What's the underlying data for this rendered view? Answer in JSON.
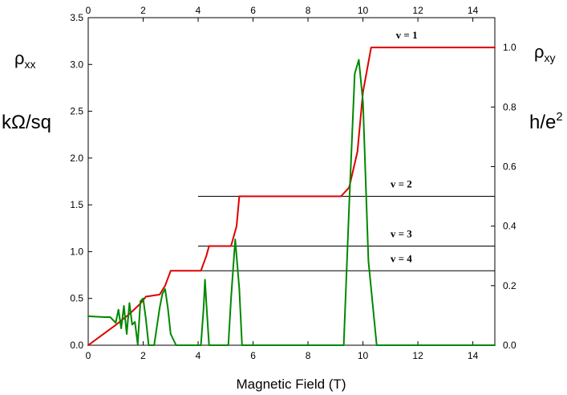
{
  "chart_data": {
    "type": "line",
    "title": "",
    "xlabel": "Magnetic Field  (T)",
    "xlim": [
      0,
      14.8
    ],
    "x_ticks": [
      "0",
      "2",
      "4",
      "6",
      "8",
      "10",
      "12",
      "14"
    ],
    "ylim_left": [
      0,
      3.5
    ],
    "left_ticks": [
      "0.0",
      "0.5",
      "1.0",
      "1.5",
      "2.0",
      "2.5",
      "3.0",
      "3.5"
    ],
    "ylim_right": [
      0,
      1.1
    ],
    "right_ticks": [
      "0.0",
      "0.2",
      "0.4",
      "0.6",
      "0.8",
      "1.0"
    ],
    "left_label_top": "ρxx",
    "left_label_unit": "kΩ/sq",
    "right_label_top": "ρxy",
    "right_label_unit": "h/e2",
    "grid": false,
    "series": [
      {
        "color": "#dd0000",
        "axis": "right",
        "x": [
          0,
          0.5,
          1.0,
          1.5,
          1.9,
          2.1,
          2.6,
          2.8,
          3.0,
          4.1,
          4.3,
          4.4,
          5.2,
          5.4,
          5.5,
          9.2,
          9.5,
          9.8,
          10.0,
          10.3,
          14.8
        ],
        "values": [
          0,
          0.034,
          0.068,
          0.105,
          0.14,
          0.163,
          0.17,
          0.2,
          0.25,
          0.25,
          0.3,
          0.333,
          0.333,
          0.4,
          0.5,
          0.5,
          0.53,
          0.65,
          0.85,
          1.0,
          1.0
        ]
      },
      {
        "color": "#008800",
        "axis": "left",
        "x": [
          0,
          0.6,
          0.8,
          1.0,
          1.1,
          1.2,
          1.3,
          1.4,
          1.5,
          1.6,
          1.7,
          1.8,
          1.9,
          2.0,
          2.1,
          2.2,
          2.4,
          2.6,
          2.7,
          2.8,
          2.9,
          3.0,
          3.2,
          4.1,
          4.2,
          4.25,
          4.3,
          4.4,
          5.1,
          5.2,
          5.35,
          5.5,
          5.6,
          9.3,
          9.5,
          9.7,
          9.85,
          10.0,
          10.2,
          10.5,
          14.8
        ],
        "values": [
          0.31,
          0.3,
          0.3,
          0.24,
          0.38,
          0.18,
          0.42,
          0.12,
          0.45,
          0.22,
          0.25,
          0.01,
          0.47,
          0.5,
          0.28,
          0.0,
          0.0,
          0.4,
          0.55,
          0.6,
          0.4,
          0.12,
          0.0,
          0.0,
          0.4,
          0.7,
          0.45,
          0.0,
          0.0,
          0.5,
          1.13,
          0.6,
          0.0,
          0.0,
          1.5,
          2.9,
          3.05,
          2.6,
          0.9,
          0.0,
          0.0
        ]
      }
    ],
    "reference_lines": [
      {
        "label": "v = 1",
        "value": 1.0
      },
      {
        "label": "v = 2",
        "value": 0.5
      },
      {
        "label": "v = 3",
        "value": 0.333
      },
      {
        "label": "v = 4",
        "value": 0.25
      }
    ]
  }
}
